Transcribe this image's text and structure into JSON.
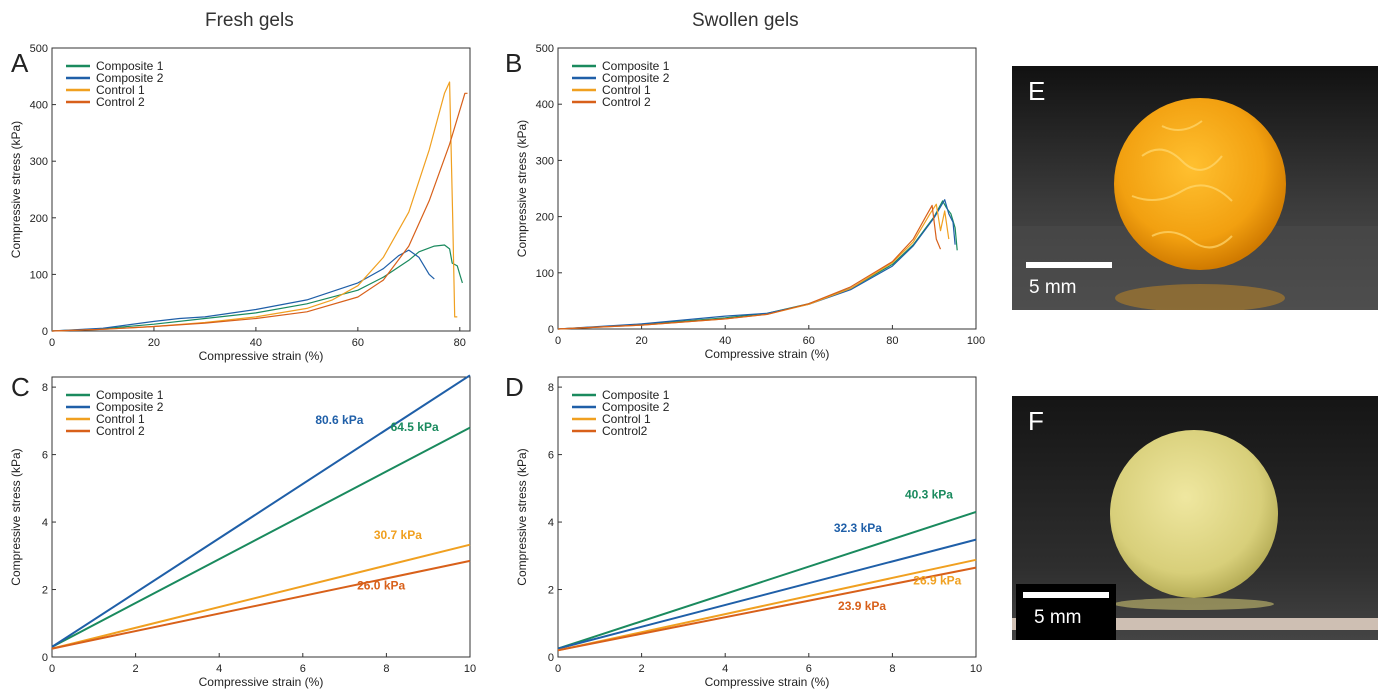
{
  "titles": {
    "fresh": "Fresh gels",
    "swollen": "Swollen gels"
  },
  "photos": [
    {
      "letter": "E",
      "scale_label": "5 mm"
    },
    {
      "letter": "F",
      "scale_label": "5 mm"
    }
  ],
  "colors": {
    "composite1": "#1a8a5e",
    "composite2": "#1f5fa8",
    "control1": "#f0a020",
    "control2": "#d8601a"
  },
  "chart_data": [
    {
      "panel": "A",
      "type": "line",
      "xlabel": "Compressive strain (%)",
      "ylabel": "Compressive stress (kPa)",
      "xlim": [
        0,
        82
      ],
      "ylim": [
        0,
        500
      ],
      "xticks": [
        0,
        20,
        40,
        60,
        80
      ],
      "yticks": [
        0,
        100,
        200,
        300,
        400,
        500
      ],
      "legend": "top-left",
      "series": [
        {
          "name": "Composite 1",
          "color": "#1a8a5e",
          "points": [
            [
              0,
              0
            ],
            [
              10,
              4
            ],
            [
              20,
              12
            ],
            [
              30,
              22
            ],
            [
              40,
              32
            ],
            [
              50,
              48
            ],
            [
              60,
              72
            ],
            [
              65,
              95
            ],
            [
              70,
              125
            ],
            [
              72,
              140
            ],
            [
              75,
              150
            ],
            [
              77,
              152
            ],
            [
              78,
              145
            ],
            [
              78.5,
              120
            ],
            [
              79.5,
              115
            ],
            [
              80,
              100
            ],
            [
              80.5,
              85
            ]
          ]
        },
        {
          "name": "Composite 2",
          "color": "#1f5fa8",
          "points": [
            [
              0,
              0
            ],
            [
              10,
              5
            ],
            [
              20,
              17
            ],
            [
              25,
              22
            ],
            [
              30,
              25
            ],
            [
              40,
              38
            ],
            [
              50,
              55
            ],
            [
              60,
              85
            ],
            [
              65,
              110
            ],
            [
              68,
              133
            ],
            [
              70,
              143
            ],
            [
              72,
              130
            ],
            [
              74,
              100
            ],
            [
              75,
              92
            ]
          ]
        },
        {
          "name": "Control 1",
          "color": "#f0a020",
          "points": [
            [
              0,
              0
            ],
            [
              10,
              3
            ],
            [
              20,
              8
            ],
            [
              30,
              15
            ],
            [
              40,
              25
            ],
            [
              50,
              40
            ],
            [
              55,
              55
            ],
            [
              60,
              80
            ],
            [
              65,
              130
            ],
            [
              70,
              210
            ],
            [
              74,
              320
            ],
            [
              77,
              420
            ],
            [
              78,
              440
            ],
            [
              78.6,
              200
            ],
            [
              79,
              25
            ],
            [
              79.5,
              25
            ]
          ]
        },
        {
          "name": "Control 2",
          "color": "#d8601a",
          "points": [
            [
              0,
              0
            ],
            [
              10,
              3
            ],
            [
              20,
              8
            ],
            [
              30,
              14
            ],
            [
              40,
              22
            ],
            [
              50,
              34
            ],
            [
              60,
              60
            ],
            [
              65,
              90
            ],
            [
              70,
              150
            ],
            [
              74,
              230
            ],
            [
              78,
              330
            ],
            [
              81,
              420
            ],
            [
              81.5,
              420
            ]
          ]
        }
      ]
    },
    {
      "panel": "B",
      "type": "line",
      "xlabel": "Compressive strain (%)",
      "ylabel": "Compressive stress (kPa)",
      "xlim": [
        0,
        100
      ],
      "ylim": [
        0,
        500
      ],
      "xticks": [
        0,
        20,
        40,
        60,
        80,
        100
      ],
      "yticks": [
        0,
        100,
        200,
        300,
        400,
        500
      ],
      "legend": "top-left",
      "series": [
        {
          "name": "Composite 1",
          "color": "#1a8a5e",
          "points": [
            [
              0,
              0
            ],
            [
              20,
              8
            ],
            [
              40,
              20
            ],
            [
              50,
              28
            ],
            [
              60,
              45
            ],
            [
              70,
              72
            ],
            [
              80,
              115
            ],
            [
              85,
              150
            ],
            [
              90,
              200
            ],
            [
              92,
              228
            ],
            [
              93,
              215
            ],
            [
              94,
              205
            ],
            [
              95,
              180
            ],
            [
              95.5,
              140
            ]
          ]
        },
        {
          "name": "Composite 2",
          "color": "#1f5fa8",
          "points": [
            [
              0,
              0
            ],
            [
              20,
              9
            ],
            [
              40,
              23
            ],
            [
              50,
              28
            ],
            [
              60,
              44
            ],
            [
              70,
              70
            ],
            [
              80,
              112
            ],
            [
              85,
              148
            ],
            [
              90,
              198
            ],
            [
              92.5,
              230
            ],
            [
              93.5,
              205
            ],
            [
              94.5,
              190
            ],
            [
              95,
              150
            ]
          ]
        },
        {
          "name": "Control 1",
          "color": "#f0a020",
          "points": [
            [
              0,
              0
            ],
            [
              20,
              7
            ],
            [
              40,
              18
            ],
            [
              50,
              26
            ],
            [
              60,
              44
            ],
            [
              70,
              72
            ],
            [
              80,
              118
            ],
            [
              85,
              155
            ],
            [
              89,
              205
            ],
            [
              90.5,
              222
            ],
            [
              91.5,
              175
            ],
            [
              92.5,
              210
            ],
            [
              93.5,
              160
            ]
          ]
        },
        {
          "name": "Control 2",
          "color": "#d8601a",
          "points": [
            [
              0,
              0
            ],
            [
              20,
              7
            ],
            [
              40,
              18
            ],
            [
              50,
              26
            ],
            [
              60,
              45
            ],
            [
              70,
              75
            ],
            [
              80,
              120
            ],
            [
              85,
              160
            ],
            [
              88,
              200
            ],
            [
              89.5,
              220
            ],
            [
              90.5,
              160
            ],
            [
              91.5,
              142
            ]
          ]
        }
      ]
    },
    {
      "panel": "C",
      "type": "line",
      "xlabel": "Compressive strain (%)",
      "ylabel": "Compressive stress (kPa)",
      "xlim": [
        0,
        10
      ],
      "ylim": [
        0,
        8.3
      ],
      "xticks": [
        0,
        2,
        4,
        6,
        8,
        10
      ],
      "yticks": [
        0,
        2,
        4,
        6,
        8
      ],
      "legend": "top-left",
      "series": [
        {
          "name": "Composite 1",
          "color": "#1a8a5e",
          "points": [
            [
              0,
              0.3
            ],
            [
              10,
              6.8
            ]
          ]
        },
        {
          "name": "Composite 2",
          "color": "#1f5fa8",
          "points": [
            [
              0,
              0.3
            ],
            [
              10,
              8.35
            ]
          ]
        },
        {
          "name": "Control 1",
          "color": "#f0a020",
          "points": [
            [
              0,
              0.25
            ],
            [
              10,
              3.33
            ]
          ]
        },
        {
          "name": "Control 2",
          "color": "#d8601a",
          "points": [
            [
              0,
              0.25
            ],
            [
              10,
              2.85
            ]
          ]
        }
      ],
      "annotations": [
        {
          "text": "80.6 kPa",
          "x": 6.3,
          "y": 6.9,
          "color": "#1f5fa8"
        },
        {
          "text": "64.5 kPa",
          "x": 8.1,
          "y": 6.7,
          "color": "#1a8a5e"
        },
        {
          "text": "30.7 kPa",
          "x": 7.7,
          "y": 3.5,
          "color": "#f0a020"
        },
        {
          "text": "26.0 kPa",
          "x": 7.3,
          "y": 2.0,
          "color": "#d8601a"
        }
      ]
    },
    {
      "panel": "D",
      "type": "line",
      "xlabel": "Compressive strain (%)",
      "ylabel": "Compressive stress (kPa)",
      "xlim": [
        0,
        10
      ],
      "ylim": [
        0,
        8.3
      ],
      "xticks": [
        0,
        2,
        4,
        6,
        8,
        10
      ],
      "yticks": [
        0,
        2,
        4,
        6,
        8
      ],
      "legend": "top-left",
      "series": [
        {
          "name": "Composite 1",
          "color": "#1a8a5e",
          "points": [
            [
              0,
              0.25
            ],
            [
              10,
              4.3
            ]
          ]
        },
        {
          "name": "Composite 2",
          "color": "#1f5fa8",
          "points": [
            [
              0,
              0.25
            ],
            [
              10,
              3.48
            ]
          ]
        },
        {
          "name": "Control 1",
          "color": "#f0a020",
          "points": [
            [
              0,
              0.2
            ],
            [
              10,
              2.88
            ]
          ]
        },
        {
          "name": "Control2",
          "color": "#d8601a",
          "points": [
            [
              0,
              0.2
            ],
            [
              10,
              2.65
            ]
          ]
        }
      ],
      "annotations": [
        {
          "text": "40.3 kPa",
          "x": 8.3,
          "y": 4.7,
          "color": "#1a8a5e"
        },
        {
          "text": "32.3 kPa",
          "x": 6.6,
          "y": 3.7,
          "color": "#1f5fa8"
        },
        {
          "text": "26.9 kPa",
          "x": 8.5,
          "y": 2.15,
          "color": "#f0a020"
        },
        {
          "text": "23.9 kPa",
          "x": 6.7,
          "y": 1.4,
          "color": "#d8601a"
        }
      ]
    }
  ]
}
